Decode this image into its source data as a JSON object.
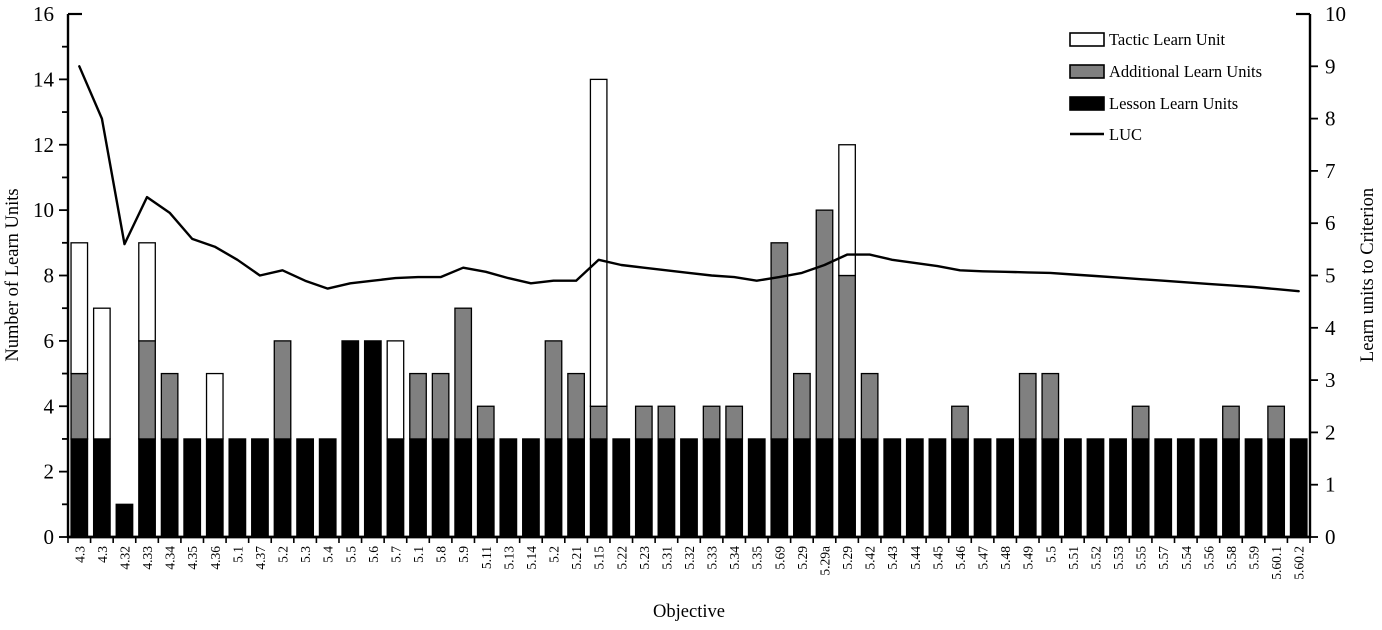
{
  "chart_data": {
    "type": "bar",
    "subtype": "stacked-bars-with-secondary-axis-line",
    "title": "",
    "xlabel": "Objective",
    "ylabel_left": "Number of Learn Units",
    "ylabel_right": "Learn units to Criterion",
    "grid": false,
    "legend_position": "top-right-inside",
    "legend_labels": [
      "Tactic Learn Unit",
      "Additional Learn Units",
      "Lesson Learn Units",
      "LUC"
    ],
    "left_axis": {
      "min": 0,
      "max": 16,
      "label_step": 2,
      "minor_step": 1
    },
    "right_axis": {
      "min": 0,
      "max": 10,
      "label_step": 1
    },
    "colors": {
      "tactic": "#ffffff",
      "additional": "#808080",
      "lesson": "#000000",
      "line": "#000000",
      "background": "#ffffff"
    },
    "categories": [
      "4.3",
      "4.3",
      "4.32",
      "4.33",
      "4.34",
      "4.35",
      "4.36",
      "5.1",
      "4.37",
      "5.2",
      "5.3",
      "5.4",
      "5.5",
      "5.6",
      "5.7",
      "5.1",
      "5.8",
      "5.9",
      "5.11",
      "5.13",
      "5.14",
      "5.2",
      "5.21",
      "5.15",
      "5.22",
      "5.23",
      "5.31",
      "5.32",
      "5.33",
      "5.34",
      "5.35",
      "5.69",
      "5.29",
      "5.29a",
      "5.29",
      "5.42",
      "5.43",
      "5.44",
      "5.45",
      "5.46",
      "5.47",
      "5.48",
      "5.49",
      "5.5",
      "5.51",
      "5.52",
      "5.53",
      "5.55",
      "5.57",
      "5.54",
      "5.56",
      "5.58",
      "5.59",
      "5.60.1",
      "5.60.2"
    ],
    "series": [
      {
        "name": "Lesson Learn Units",
        "type": "bar-stack",
        "axis": "left",
        "color": "#000000",
        "values": [
          3,
          3,
          1,
          3,
          3,
          3,
          3,
          3,
          3,
          3,
          3,
          3,
          6,
          6,
          3,
          3,
          3,
          3,
          3,
          3,
          3,
          3,
          3,
          3,
          3,
          3,
          3,
          3,
          3,
          3,
          3,
          3,
          3,
          3,
          3,
          3,
          3,
          3,
          3,
          3,
          3,
          3,
          3,
          3,
          3,
          3,
          3,
          3,
          3,
          3,
          3,
          3,
          3,
          3,
          3
        ]
      },
      {
        "name": "Additional Learn Units",
        "type": "bar-stack",
        "axis": "left",
        "color": "#808080",
        "values": [
          2,
          0,
          0,
          3,
          2,
          0,
          0,
          0,
          0,
          3,
          0,
          0,
          0,
          0,
          0,
          2,
          2,
          4,
          1,
          0,
          0,
          3,
          2,
          1,
          0,
          1,
          1,
          0,
          1,
          1,
          0,
          6,
          2,
          7,
          5,
          2,
          0,
          0,
          0,
          1,
          0,
          0,
          2,
          2,
          0,
          0,
          0,
          1,
          0,
          0,
          0,
          1,
          0,
          1,
          0
        ]
      },
      {
        "name": "Tactic Learn Unit",
        "type": "bar-stack",
        "axis": "left",
        "color": "#ffffff",
        "values": [
          4,
          4,
          0,
          3,
          0,
          0,
          2,
          0,
          0,
          0,
          0,
          0,
          0,
          0,
          3,
          0,
          0,
          0,
          0,
          0,
          0,
          0,
          0,
          10,
          0,
          0,
          0,
          0,
          0,
          0,
          0,
          0,
          0,
          0,
          4,
          0,
          0,
          0,
          0,
          0,
          0,
          0,
          0,
          0,
          0,
          0,
          0,
          0,
          0,
          0,
          0,
          0,
          0,
          0,
          0
        ]
      },
      {
        "name": "LUC",
        "type": "line",
        "axis": "right",
        "color": "#000000",
        "values": [
          9.0,
          8.0,
          5.6,
          6.5,
          6.2,
          5.7,
          5.55,
          5.3,
          5.0,
          5.1,
          4.9,
          4.75,
          4.85,
          4.9,
          4.95,
          4.97,
          4.97,
          5.15,
          5.07,
          4.95,
          4.85,
          4.9,
          4.9,
          5.3,
          5.2,
          5.15,
          5.1,
          5.05,
          5.0,
          4.97,
          4.9,
          4.97,
          5.05,
          5.2,
          5.4,
          5.4,
          5.3,
          5.24,
          5.18,
          5.1,
          5.08,
          5.07,
          5.06,
          5.05,
          5.02,
          4.99,
          4.96,
          4.93,
          4.9,
          4.87,
          4.84,
          4.81,
          4.78,
          4.74,
          4.7
        ]
      }
    ]
  }
}
